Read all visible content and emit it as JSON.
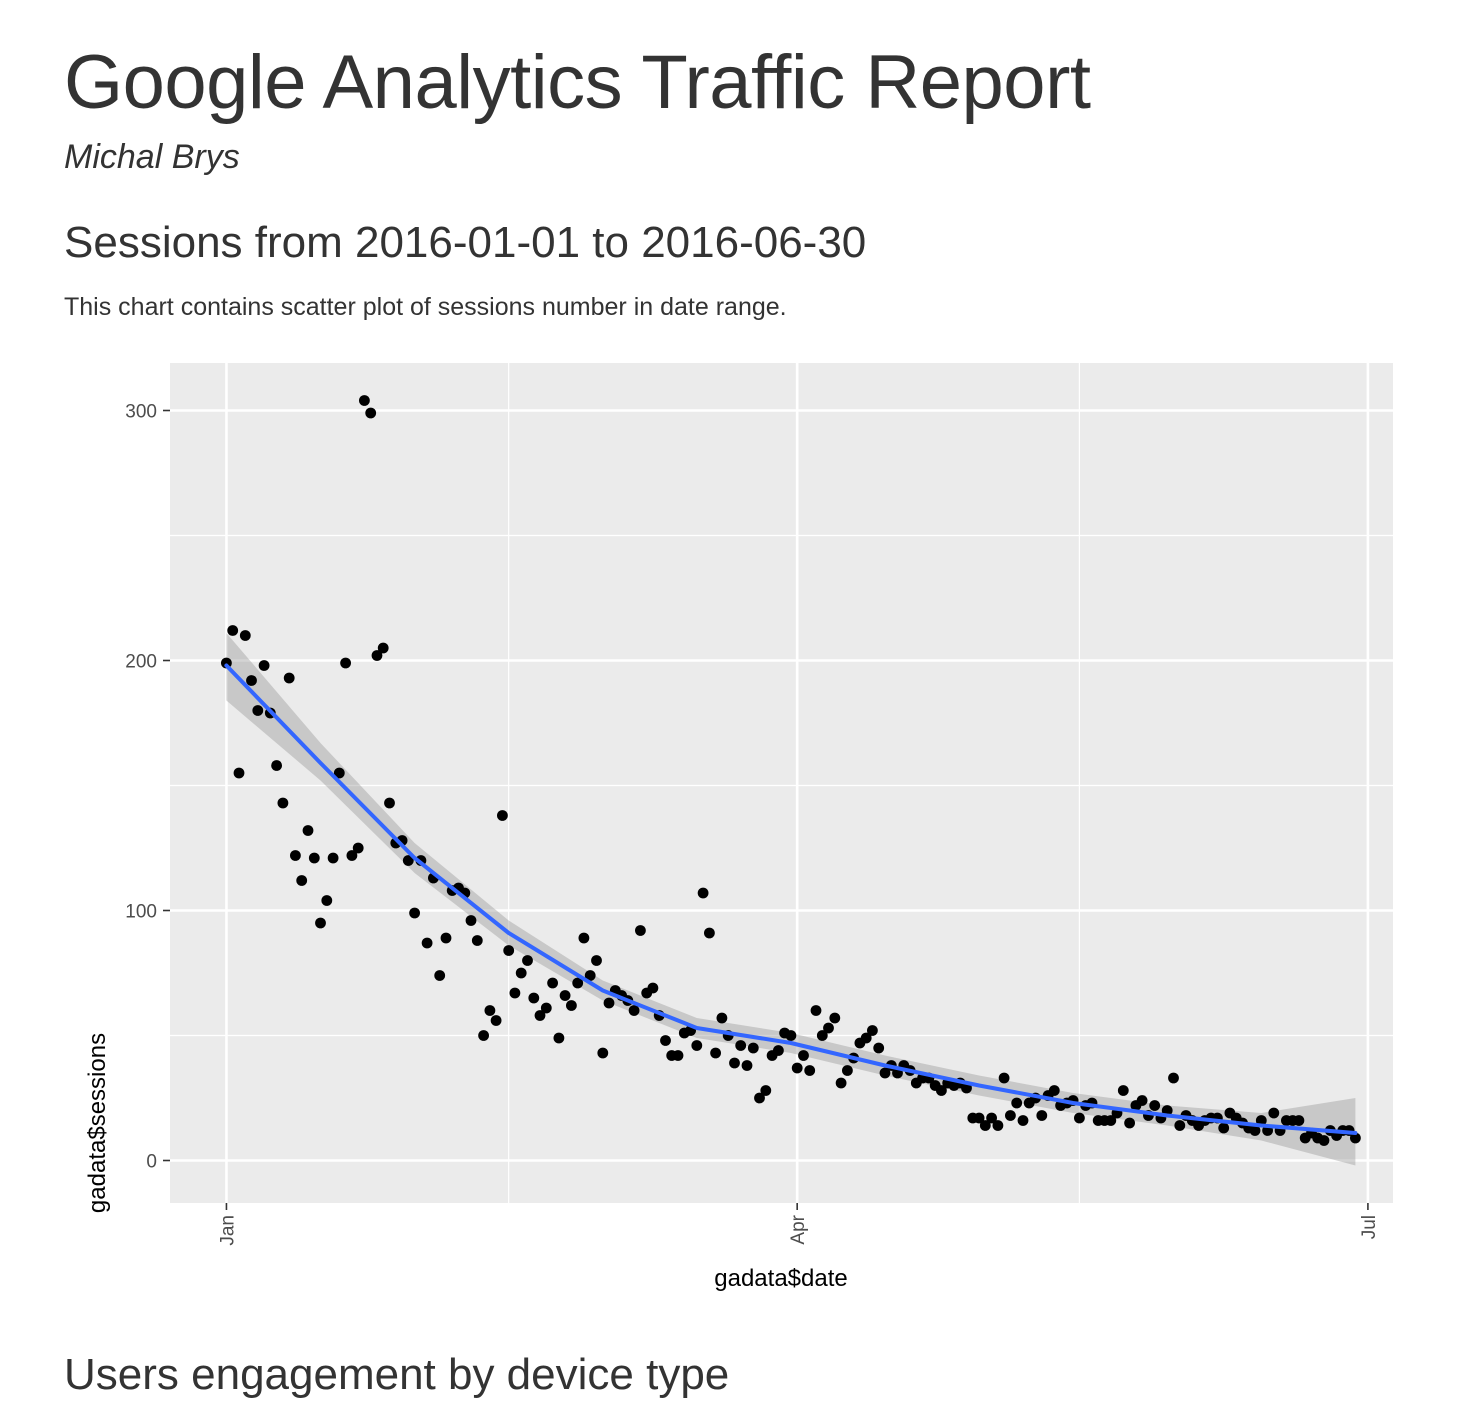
{
  "report": {
    "title": "Google Analytics Traffic Report",
    "author": "Michal Brys"
  },
  "sections": {
    "sessions": {
      "title": "Sessions from 2016-01-01 to 2016-06-30",
      "description": "This chart contains scatter plot of sessions number in date range."
    },
    "devices": {
      "title": "Users engagement by device type"
    }
  },
  "chart_data": {
    "type": "scatter",
    "xlabel": "gadata$date",
    "ylabel": "gadata$sessions",
    "xlim": [
      "2015-12-23",
      "2016-07-05"
    ],
    "ylim": [
      -17,
      319
    ],
    "x_ticks": [
      {
        "date": "2016-01-01",
        "label": "Jan"
      },
      {
        "date": "2016-04-01",
        "label": "Apr"
      },
      {
        "date": "2016-07-01",
        "label": "Jul"
      }
    ],
    "x_minor_ticks": [
      "2016-02-15",
      "2016-05-16"
    ],
    "y_ticks": [
      0,
      100,
      200,
      300
    ],
    "y_minor_ticks": [
      50,
      150,
      250
    ],
    "grid": true,
    "colors": {
      "panel": "#ebebeb",
      "grid": "#ffffff",
      "points": "#000000",
      "smooth_line": "#3366ff",
      "confidence_band": "#999999"
    },
    "series": [
      {
        "points": [
          [
            "2016-01-01",
            199
          ],
          [
            "2016-01-02",
            212
          ],
          [
            "2016-01-03",
            155
          ],
          [
            "2016-01-04",
            210
          ],
          [
            "2016-01-05",
            192
          ],
          [
            "2016-01-06",
            180
          ],
          [
            "2016-01-07",
            198
          ],
          [
            "2016-01-08",
            179
          ],
          [
            "2016-01-09",
            158
          ],
          [
            "2016-01-10",
            143
          ],
          [
            "2016-01-11",
            193
          ],
          [
            "2016-01-12",
            122
          ],
          [
            "2016-01-13",
            112
          ],
          [
            "2016-01-14",
            132
          ],
          [
            "2016-01-15",
            121
          ],
          [
            "2016-01-16",
            95
          ],
          [
            "2016-01-17",
            104
          ],
          [
            "2016-01-18",
            121
          ],
          [
            "2016-01-19",
            155
          ],
          [
            "2016-01-20",
            199
          ],
          [
            "2016-01-21",
            122
          ],
          [
            "2016-01-22",
            125
          ],
          [
            "2016-01-23",
            304
          ],
          [
            "2016-01-24",
            299
          ],
          [
            "2016-01-25",
            202
          ],
          [
            "2016-01-26",
            205
          ],
          [
            "2016-01-27",
            143
          ],
          [
            "2016-01-28",
            127
          ],
          [
            "2016-01-29",
            128
          ],
          [
            "2016-01-30",
            120
          ],
          [
            "2016-01-31",
            99
          ],
          [
            "2016-02-01",
            120
          ],
          [
            "2016-02-02",
            87
          ],
          [
            "2016-02-03",
            113
          ],
          [
            "2016-02-04",
            74
          ],
          [
            "2016-02-05",
            89
          ],
          [
            "2016-02-06",
            108
          ],
          [
            "2016-02-07",
            109
          ],
          [
            "2016-02-08",
            107
          ],
          [
            "2016-02-09",
            96
          ],
          [
            "2016-02-10",
            88
          ],
          [
            "2016-02-11",
            50
          ],
          [
            "2016-02-12",
            60
          ],
          [
            "2016-02-13",
            56
          ],
          [
            "2016-02-14",
            138
          ],
          [
            "2016-02-15",
            84
          ],
          [
            "2016-02-16",
            67
          ],
          [
            "2016-02-17",
            75
          ],
          [
            "2016-02-18",
            80
          ],
          [
            "2016-02-19",
            65
          ],
          [
            "2016-02-20",
            58
          ],
          [
            "2016-02-21",
            61
          ],
          [
            "2016-02-22",
            71
          ],
          [
            "2016-02-23",
            49
          ],
          [
            "2016-02-24",
            66
          ],
          [
            "2016-02-25",
            62
          ],
          [
            "2016-02-26",
            71
          ],
          [
            "2016-02-27",
            89
          ],
          [
            "2016-02-28",
            74
          ],
          [
            "2016-02-29",
            80
          ],
          [
            "2016-03-01",
            43
          ],
          [
            "2016-03-02",
            63
          ],
          [
            "2016-03-03",
            68
          ],
          [
            "2016-03-04",
            66
          ],
          [
            "2016-03-05",
            64
          ],
          [
            "2016-03-06",
            60
          ],
          [
            "2016-03-07",
            92
          ],
          [
            "2016-03-08",
            67
          ],
          [
            "2016-03-09",
            69
          ],
          [
            "2016-03-10",
            58
          ],
          [
            "2016-03-11",
            48
          ],
          [
            "2016-03-12",
            42
          ],
          [
            "2016-03-13",
            42
          ],
          [
            "2016-03-14",
            51
          ],
          [
            "2016-03-15",
            52
          ],
          [
            "2016-03-16",
            46
          ],
          [
            "2016-03-17",
            107
          ],
          [
            "2016-03-18",
            91
          ],
          [
            "2016-03-19",
            43
          ],
          [
            "2016-03-20",
            57
          ],
          [
            "2016-03-21",
            50
          ],
          [
            "2016-03-22",
            39
          ],
          [
            "2016-03-23",
            46
          ],
          [
            "2016-03-24",
            38
          ],
          [
            "2016-03-25",
            45
          ],
          [
            "2016-03-26",
            25
          ],
          [
            "2016-03-27",
            28
          ],
          [
            "2016-03-28",
            42
          ],
          [
            "2016-03-29",
            44
          ],
          [
            "2016-03-30",
            51
          ],
          [
            "2016-03-31",
            50
          ],
          [
            "2016-04-01",
            37
          ],
          [
            "2016-04-02",
            42
          ],
          [
            "2016-04-03",
            36
          ],
          [
            "2016-04-04",
            60
          ],
          [
            "2016-04-05",
            50
          ],
          [
            "2016-04-06",
            53
          ],
          [
            "2016-04-07",
            57
          ],
          [
            "2016-04-08",
            31
          ],
          [
            "2016-04-09",
            36
          ],
          [
            "2016-04-10",
            41
          ],
          [
            "2016-04-11",
            47
          ],
          [
            "2016-04-12",
            49
          ],
          [
            "2016-04-13",
            52
          ],
          [
            "2016-04-14",
            45
          ],
          [
            "2016-04-15",
            35
          ],
          [
            "2016-04-16",
            38
          ],
          [
            "2016-04-17",
            35
          ],
          [
            "2016-04-18",
            38
          ],
          [
            "2016-04-19",
            36
          ],
          [
            "2016-04-20",
            31
          ],
          [
            "2016-04-21",
            33
          ],
          [
            "2016-04-22",
            33
          ],
          [
            "2016-04-23",
            30
          ],
          [
            "2016-04-24",
            28
          ],
          [
            "2016-04-25",
            31
          ],
          [
            "2016-04-26",
            30
          ],
          [
            "2016-04-27",
            31
          ],
          [
            "2016-04-28",
            29
          ],
          [
            "2016-04-29",
            17
          ],
          [
            "2016-04-30",
            17
          ],
          [
            "2016-05-01",
            14
          ],
          [
            "2016-05-02",
            17
          ],
          [
            "2016-05-03",
            14
          ],
          [
            "2016-05-04",
            33
          ],
          [
            "2016-05-05",
            18
          ],
          [
            "2016-05-06",
            23
          ],
          [
            "2016-05-07",
            16
          ],
          [
            "2016-05-08",
            23
          ],
          [
            "2016-05-09",
            25
          ],
          [
            "2016-05-10",
            18
          ],
          [
            "2016-05-11",
            26
          ],
          [
            "2016-05-12",
            28
          ],
          [
            "2016-05-13",
            22
          ],
          [
            "2016-05-14",
            23
          ],
          [
            "2016-05-15",
            24
          ],
          [
            "2016-05-16",
            17
          ],
          [
            "2016-05-17",
            22
          ],
          [
            "2016-05-18",
            23
          ],
          [
            "2016-05-19",
            16
          ],
          [
            "2016-05-20",
            16
          ],
          [
            "2016-05-21",
            16
          ],
          [
            "2016-05-22",
            19
          ],
          [
            "2016-05-23",
            28
          ],
          [
            "2016-05-24",
            15
          ],
          [
            "2016-05-25",
            22
          ],
          [
            "2016-05-26",
            24
          ],
          [
            "2016-05-27",
            18
          ],
          [
            "2016-05-28",
            22
          ],
          [
            "2016-05-29",
            17
          ],
          [
            "2016-05-30",
            20
          ],
          [
            "2016-05-31",
            33
          ],
          [
            "2016-06-01",
            14
          ],
          [
            "2016-06-02",
            18
          ],
          [
            "2016-06-03",
            16
          ],
          [
            "2016-06-04",
            14
          ],
          [
            "2016-06-05",
            16
          ],
          [
            "2016-06-06",
            17
          ],
          [
            "2016-06-07",
            17
          ],
          [
            "2016-06-08",
            13
          ],
          [
            "2016-06-09",
            19
          ],
          [
            "2016-06-10",
            17
          ],
          [
            "2016-06-11",
            15
          ],
          [
            "2016-06-12",
            13
          ],
          [
            "2016-06-13",
            12
          ],
          [
            "2016-06-14",
            16
          ],
          [
            "2016-06-15",
            12
          ],
          [
            "2016-06-16",
            19
          ],
          [
            "2016-06-17",
            12
          ],
          [
            "2016-06-18",
            16
          ],
          [
            "2016-06-19",
            16
          ],
          [
            "2016-06-20",
            16
          ],
          [
            "2016-06-21",
            9
          ],
          [
            "2016-06-22",
            11
          ],
          [
            "2016-06-23",
            9
          ],
          [
            "2016-06-24",
            8
          ],
          [
            "2016-06-25",
            12
          ],
          [
            "2016-06-26",
            10
          ],
          [
            "2016-06-27",
            12
          ],
          [
            "2016-06-28",
            12
          ],
          [
            "2016-06-29",
            9
          ]
        ]
      }
    ],
    "smooth": {
      "x": [
        "2016-01-01",
        "2016-01-16",
        "2016-01-31",
        "2016-02-15",
        "2016-03-01",
        "2016-03-16",
        "2016-03-31",
        "2016-04-15",
        "2016-04-30",
        "2016-05-15",
        "2016-05-30",
        "2016-06-14",
        "2016-06-29"
      ],
      "y": [
        198,
        159,
        121,
        91,
        68,
        53,
        47,
        38,
        30,
        23,
        18,
        14,
        11
      ],
      "lower": [
        184,
        152,
        115,
        86,
        64,
        49,
        43,
        34,
        26,
        19,
        14,
        8,
        -2
      ],
      "upper": [
        211,
        167,
        127,
        96,
        72,
        57,
        51,
        42,
        34,
        27,
        22,
        19,
        25
      ]
    }
  }
}
